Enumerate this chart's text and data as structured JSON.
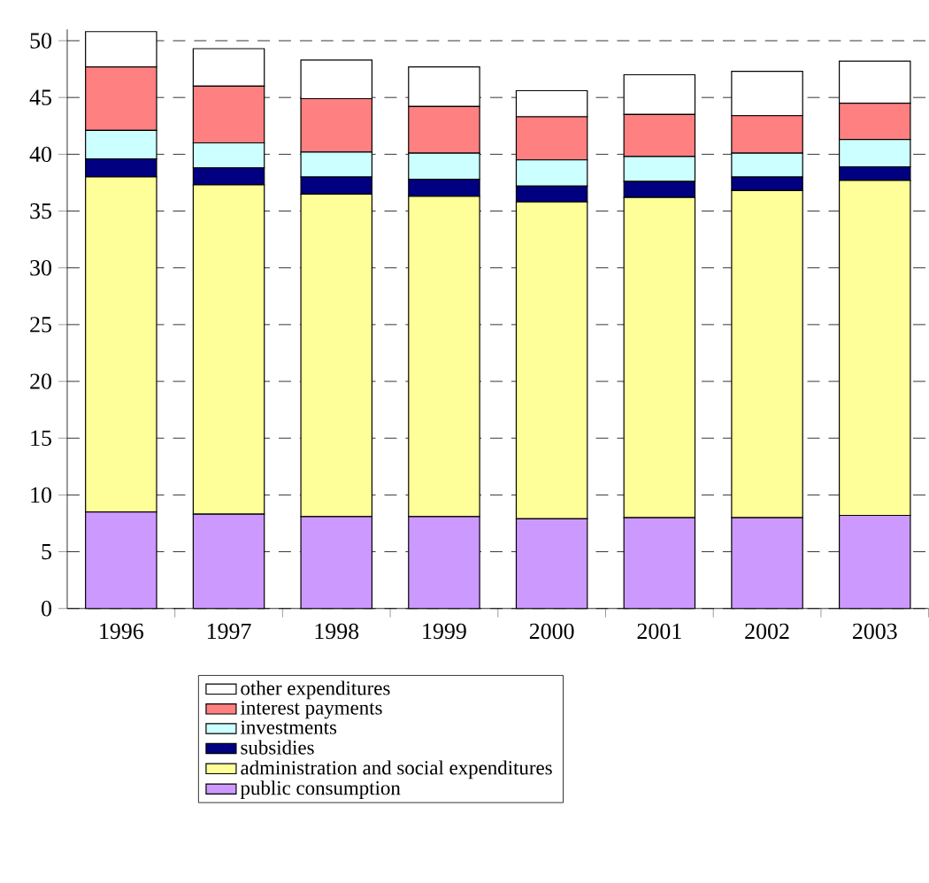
{
  "chart_data": {
    "type": "bar",
    "stacked": true,
    "categories": [
      "1996",
      "1997",
      "1998",
      "1999",
      "2000",
      "2001",
      "2002",
      "2003"
    ],
    "series": [
      {
        "name": "public consumption",
        "color": "#cc99ff",
        "values": [
          8.5,
          8.3,
          8.1,
          8.1,
          7.9,
          8.0,
          8.0,
          8.2
        ]
      },
      {
        "name": "administration and social expenditures",
        "color": "#ffff99",
        "values": [
          29.5,
          29.0,
          28.4,
          28.2,
          27.9,
          28.2,
          28.8,
          29.5
        ]
      },
      {
        "name": "subsidies",
        "color": "#000080",
        "values": [
          1.6,
          1.5,
          1.5,
          1.5,
          1.4,
          1.4,
          1.2,
          1.2
        ]
      },
      {
        "name": "investments",
        "color": "#ccffff",
        "values": [
          2.5,
          2.2,
          2.2,
          2.3,
          2.3,
          2.2,
          2.1,
          2.4
        ]
      },
      {
        "name": "interest payments",
        "color": "#ff8080",
        "values": [
          5.6,
          5.0,
          4.7,
          4.1,
          3.8,
          3.7,
          3.3,
          3.2
        ]
      },
      {
        "name": "other expenditures",
        "color": "#ffffff",
        "values": [
          3.1,
          3.3,
          3.4,
          3.5,
          2.3,
          3.5,
          3.9,
          3.7
        ]
      }
    ],
    "ylim": [
      0,
      51
    ],
    "yticks": [
      0,
      5,
      10,
      15,
      20,
      25,
      30,
      35,
      40,
      45,
      50
    ],
    "grid": "y",
    "legend": "bottom"
  }
}
